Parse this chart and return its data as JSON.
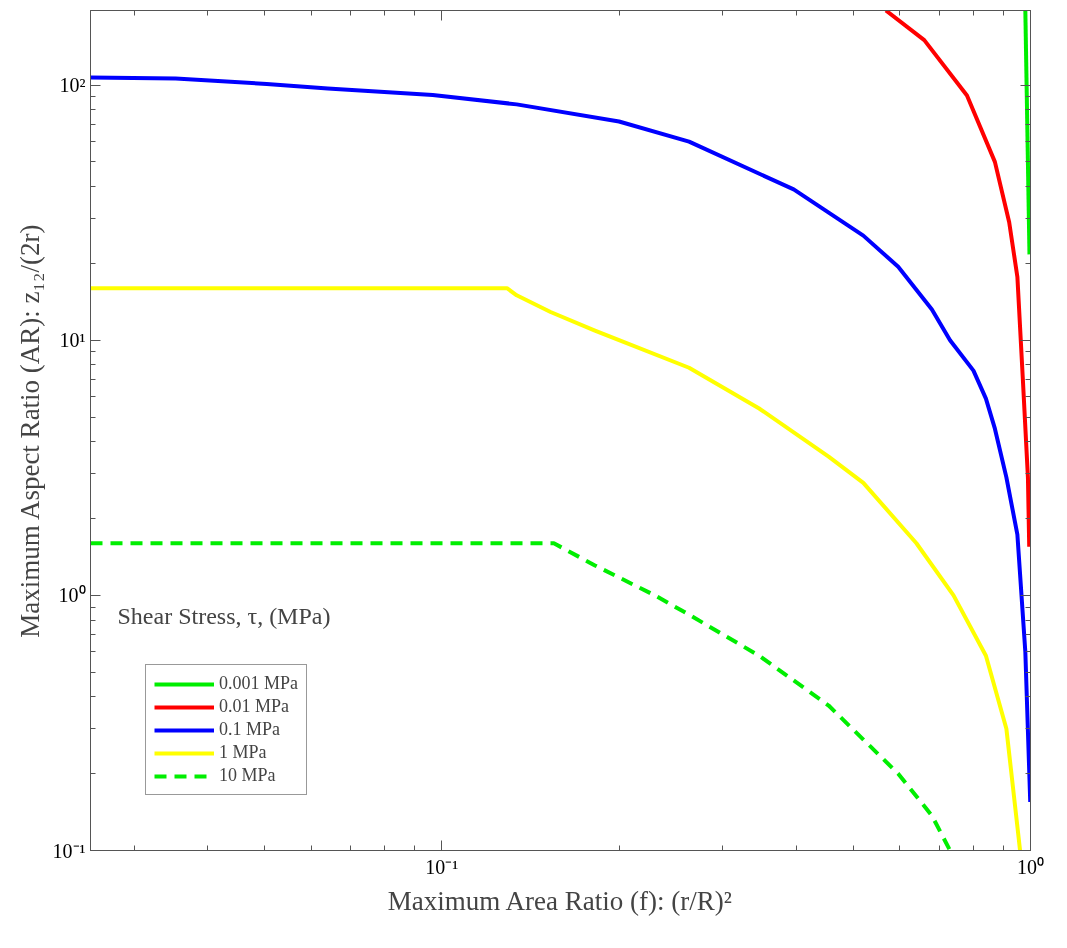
{
  "chart_data": {
    "type": "line",
    "xlabel": "Maximum Area Ratio (f): (r/R)²",
    "ylabel": "Maximum Aspect Ratio (AR): z₁₂/(2r)",
    "legend_title": "Shear Stress, τ, (MPa)",
    "log": "xy",
    "grid": false,
    "legend": "bottom left",
    "xlim": [
      0.0253,
      1
    ],
    "ylim": [
      0.1,
      196
    ],
    "xticks": [
      {
        "value": 0.1,
        "label": "10⁻¹"
      },
      {
        "value": 1,
        "label": "10⁰"
      }
    ],
    "yticks": [
      {
        "value": 0.1,
        "label": "10⁻¹"
      },
      {
        "value": 1,
        "label": "10⁰"
      },
      {
        "value": 10,
        "label": "10¹"
      },
      {
        "value": 100,
        "label": "10²"
      }
    ],
    "series": [
      {
        "name": "0.001 MPa",
        "color": "#00ee00",
        "x": [
          0.98,
          0.996
        ],
        "values": [
          196,
          21.7
        ]
      },
      {
        "name": "0.01 MPa",
        "color": "#ff0000",
        "x": [
          0.568,
          0.66,
          0.78,
          0.87,
          0.92,
          0.95,
          0.97,
          0.99,
          0.995
        ],
        "values": [
          196,
          150,
          91,
          50,
          29,
          17.7,
          7.2,
          2.9,
          1.55
        ]
      },
      {
        "name": "0.1 MPa",
        "color": "#0000ff",
        "x": [
          0.0253,
          0.0353,
          0.0504,
          0.064,
          0.0965,
          0.134,
          0.2,
          0.263,
          0.396,
          0.52,
          0.596,
          0.68,
          0.73,
          0.8,
          0.84,
          0.87,
          0.91,
          0.95,
          0.98,
          0.999
        ],
        "values": [
          107,
          106,
          101,
          97,
          91.5,
          84,
          72,
          60,
          39,
          25.7,
          19.4,
          13.2,
          10,
          7.6,
          5.9,
          4.5,
          2.9,
          1.73,
          0.6,
          0.155
        ]
      },
      {
        "name": "1 MPa",
        "color": "#ffff00",
        "x": [
          0.0253,
          0.129,
          0.134,
          0.153,
          0.182,
          0.2,
          0.263,
          0.346,
          0.454,
          0.52,
          0.64,
          0.74,
          0.84,
          0.91,
          0.96
        ],
        "values": [
          16,
          16,
          15,
          12.9,
          10.9,
          10,
          7.8,
          5.4,
          3.5,
          2.76,
          1.6,
          1.0,
          0.58,
          0.3,
          0.1
        ]
      },
      {
        "name": "10 MPa",
        "color": "#00ee00",
        "line_style": "dashed",
        "x": [
          0.0253,
          0.155,
          0.182,
          0.23,
          0.263,
          0.346,
          0.454,
          0.596,
          0.68,
          0.73
        ],
        "values": [
          1.6,
          1.6,
          1.31,
          1.0,
          0.84,
          0.58,
          0.37,
          0.2,
          0.137,
          0.1
        ]
      }
    ]
  }
}
